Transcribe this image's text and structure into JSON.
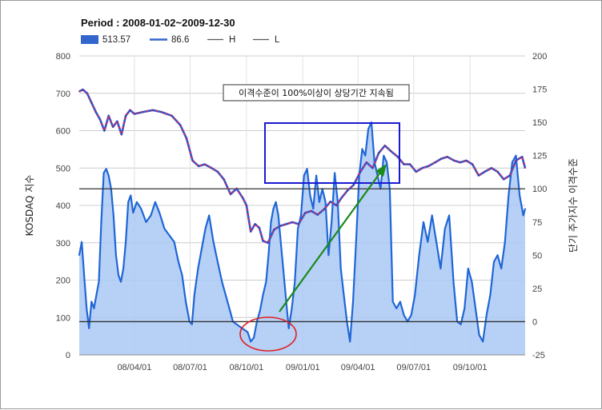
{
  "chart_data": {
    "type": "area",
    "title": "Period : 2008-01-02~2009-12-30",
    "legend": [
      {
        "label": "513.57",
        "color": "#3366cc",
        "kind": "box"
      },
      {
        "label": "86.6",
        "color": "#3366cc",
        "kind": "line-thick"
      },
      {
        "label": "H",
        "color": "#555555",
        "kind": "line-thin"
      },
      {
        "label": "L",
        "color": "#555555",
        "kind": "line-thin"
      }
    ],
    "legend_position": "top-left",
    "ylabel": "KOSDAQ 지수",
    "y2label": "단기 주가지수 이격수준",
    "ylim": [
      0,
      800
    ],
    "y2lim": [
      -25,
      200
    ],
    "yticks": [
      "0",
      "100",
      "200",
      "300",
      "400",
      "500",
      "600",
      "700",
      "800"
    ],
    "y2ticks": [
      "-25",
      "0",
      "25",
      "50",
      "75",
      "100",
      "125",
      "150",
      "175",
      "200"
    ],
    "xlim": [
      "2008-01-02",
      "2009-12-30"
    ],
    "xticks": [
      {
        "date": "2008-04-01",
        "label": "08/04/01"
      },
      {
        "date": "2008-07-01",
        "label": "08/07/01"
      },
      {
        "date": "2008-10-01",
        "label": "08/10/01"
      },
      {
        "date": "2009-01-01",
        "label": "09/01/01"
      },
      {
        "date": "2009-04-01",
        "label": "09/04/01"
      },
      {
        "date": "2009-07-01",
        "label": "09/07/01"
      },
      {
        "date": "2009-10-01",
        "label": "09/10/01"
      }
    ],
    "grid": true,
    "h_line": 100,
    "l_line": 0,
    "series": [
      {
        "name": "513.57",
        "axis": "left",
        "style": "dashed",
        "x": [
          "2008-01-02",
          "2008-01-08",
          "2008-01-15",
          "2008-01-22",
          "2008-01-29",
          "2008-02-05",
          "2008-02-12",
          "2008-02-19",
          "2008-02-26",
          "2008-03-04",
          "2008-03-11",
          "2008-03-18",
          "2008-03-25",
          "2008-04-01",
          "2008-04-15",
          "2008-05-01",
          "2008-05-15",
          "2008-06-01",
          "2008-06-15",
          "2008-06-25",
          "2008-07-05",
          "2008-07-15",
          "2008-07-25",
          "2008-08-05",
          "2008-08-15",
          "2008-08-25",
          "2008-09-05",
          "2008-09-15",
          "2008-09-25",
          "2008-10-01",
          "2008-10-08",
          "2008-10-15",
          "2008-10-22",
          "2008-10-28",
          "2008-11-05",
          "2008-11-15",
          "2008-11-25",
          "2008-12-05",
          "2008-12-15",
          "2008-12-25",
          "2009-01-05",
          "2009-01-15",
          "2009-01-25",
          "2009-02-05",
          "2009-02-15",
          "2009-02-25",
          "2009-03-05",
          "2009-03-15",
          "2009-03-25",
          "2009-04-05",
          "2009-04-15",
          "2009-04-25",
          "2009-05-05",
          "2009-05-15",
          "2009-05-25",
          "2009-06-05",
          "2009-06-15",
          "2009-06-25",
          "2009-07-05",
          "2009-07-15",
          "2009-07-25",
          "2009-08-05",
          "2009-08-15",
          "2009-08-25",
          "2009-09-05",
          "2009-09-15",
          "2009-09-25",
          "2009-10-05",
          "2009-10-15",
          "2009-10-25",
          "2009-11-05",
          "2009-11-15",
          "2009-11-25",
          "2009-12-05",
          "2009-12-15",
          "2009-12-25",
          "2009-12-30"
        ],
        "values": [
          705,
          710,
          700,
          675,
          650,
          630,
          600,
          640,
          610,
          625,
          590,
          640,
          655,
          645,
          650,
          655,
          650,
          640,
          615,
          580,
          520,
          505,
          510,
          500,
          490,
          470,
          430,
          445,
          420,
          400,
          330,
          350,
          340,
          305,
          300,
          335,
          345,
          350,
          355,
          350,
          380,
          385,
          375,
          390,
          410,
          400,
          420,
          440,
          455,
          490,
          515,
          500,
          540,
          560,
          545,
          530,
          510,
          510,
          490,
          500,
          505,
          515,
          525,
          530,
          520,
          515,
          520,
          510,
          480,
          490,
          500,
          490,
          470,
          480,
          520,
          530,
          500
        ]
      },
      {
        "name": "86.6",
        "axis": "right",
        "style": "area",
        "x": [
          "2008-01-02",
          "2008-01-06",
          "2008-01-10",
          "2008-01-14",
          "2008-01-18",
          "2008-01-22",
          "2008-01-26",
          "2008-01-30",
          "2008-02-03",
          "2008-02-07",
          "2008-02-11",
          "2008-02-15",
          "2008-02-19",
          "2008-02-23",
          "2008-02-27",
          "2008-03-02",
          "2008-03-06",
          "2008-03-10",
          "2008-03-14",
          "2008-03-18",
          "2008-03-22",
          "2008-03-26",
          "2008-03-30",
          "2008-04-05",
          "2008-04-12",
          "2008-04-20",
          "2008-04-28",
          "2008-05-05",
          "2008-05-12",
          "2008-05-20",
          "2008-05-28",
          "2008-06-05",
          "2008-06-12",
          "2008-06-18",
          "2008-06-24",
          "2008-06-30",
          "2008-07-04",
          "2008-07-08",
          "2008-07-14",
          "2008-07-20",
          "2008-07-26",
          "2008-08-01",
          "2008-08-08",
          "2008-08-15",
          "2008-08-22",
          "2008-08-28",
          "2008-09-03",
          "2008-09-09",
          "2008-09-15",
          "2008-09-21",
          "2008-09-27",
          "2008-10-03",
          "2008-10-08",
          "2008-10-13",
          "2008-10-18",
          "2008-10-23",
          "2008-10-28",
          "2008-11-02",
          "2008-11-06",
          "2008-11-10",
          "2008-11-14",
          "2008-11-18",
          "2008-11-22",
          "2008-11-26",
          "2008-11-30",
          "2008-12-04",
          "2008-12-09",
          "2008-12-14",
          "2008-12-19",
          "2008-12-24",
          "2008-12-29",
          "2009-01-03",
          "2009-01-08",
          "2009-01-13",
          "2009-01-18",
          "2009-01-23",
          "2009-01-28",
          "2009-02-02",
          "2009-02-07",
          "2009-02-12",
          "2009-02-17",
          "2009-02-22",
          "2009-02-27",
          "2009-03-04",
          "2009-03-09",
          "2009-03-14",
          "2009-03-19",
          "2009-03-24",
          "2009-03-29",
          "2009-04-03",
          "2009-04-08",
          "2009-04-13",
          "2009-04-18",
          "2009-04-23",
          "2009-04-28",
          "2009-05-03",
          "2009-05-08",
          "2009-05-13",
          "2009-05-18",
          "2009-05-23",
          "2009-05-28",
          "2009-06-03",
          "2009-06-09",
          "2009-06-15",
          "2009-06-21",
          "2009-06-27",
          "2009-07-03",
          "2009-07-10",
          "2009-07-17",
          "2009-07-24",
          "2009-07-31",
          "2009-08-07",
          "2009-08-14",
          "2009-08-21",
          "2009-08-28",
          "2009-09-04",
          "2009-09-10",
          "2009-09-16",
          "2009-09-22",
          "2009-09-28",
          "2009-10-04",
          "2009-10-10",
          "2009-10-16",
          "2009-10-22",
          "2009-10-28",
          "2009-11-03",
          "2009-11-09",
          "2009-11-15",
          "2009-11-21",
          "2009-11-27",
          "2009-12-03",
          "2009-12-09",
          "2009-12-15",
          "2009-12-21",
          "2009-12-27",
          "2009-12-30"
        ],
        "values": [
          50,
          60,
          35,
          10,
          -5,
          15,
          10,
          20,
          30,
          75,
          112,
          115,
          110,
          100,
          80,
          50,
          35,
          30,
          40,
          60,
          90,
          95,
          82,
          90,
          85,
          75,
          80,
          90,
          82,
          70,
          65,
          60,
          45,
          35,
          15,
          0,
          -2,
          20,
          40,
          55,
          70,
          80,
          60,
          45,
          30,
          20,
          10,
          0,
          -2,
          -4,
          -6,
          -8,
          -15,
          -12,
          0,
          8,
          20,
          30,
          50,
          75,
          85,
          90,
          80,
          60,
          40,
          20,
          -5,
          10,
          30,
          70,
          80,
          110,
          115,
          95,
          85,
          110,
          90,
          100,
          90,
          50,
          75,
          112,
          90,
          40,
          20,
          0,
          -15,
          15,
          60,
          110,
          130,
          125,
          145,
          150,
          120,
          110,
          100,
          125,
          120,
          100,
          15,
          10,
          15,
          5,
          0,
          5,
          20,
          50,
          75,
          60,
          80,
          60,
          40,
          70,
          80,
          30,
          0,
          -2,
          10,
          40,
          30,
          10,
          -10,
          -15,
          5,
          20,
          45,
          50,
          40,
          60,
          95,
          120,
          125,
          95,
          80,
          85
        ]
      }
    ],
    "annotations": [
      {
        "text": "이격수준이 100%이상이 상당기간 지속됨"
      }
    ]
  }
}
